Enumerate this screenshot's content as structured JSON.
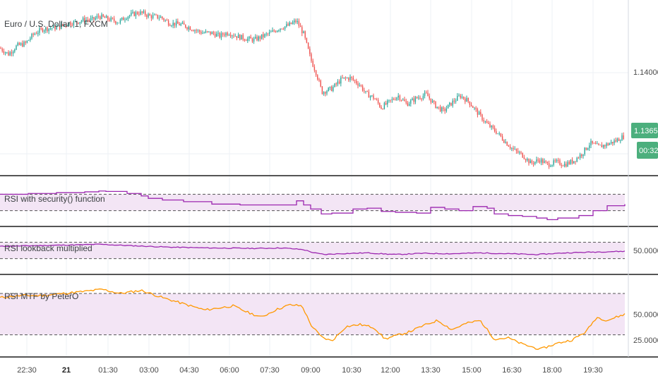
{
  "colors": {
    "candle_up": "#26a69a",
    "candle_down": "#ef5350",
    "rsi_security": "#9c27b0",
    "rsi_lookback": "#9c27b0",
    "rsi_mtf": "#ff9800",
    "band_fill": "#f3e5f5",
    "badge_green": "#4caf7d",
    "separator": "#555555",
    "grid": "#edf0f5"
  },
  "x_axis": {
    "labels": [
      "22:30",
      "21",
      "01:30",
      "03:00",
      "04:30",
      "06:00",
      "07:30",
      "09:00",
      "10:30",
      "12:00",
      "13:30",
      "15:00",
      "16:30",
      "18:00",
      "19:30"
    ],
    "bold_labels": [
      "21"
    ]
  },
  "panes": [
    {
      "id": "price",
      "title": "Euro / U.S. Dollar, 1, FXCM"
    },
    {
      "id": "rsi-security",
      "title": "RSI with security() function"
    },
    {
      "id": "rsi-lookback",
      "title": "RSI lookback multiplied"
    },
    {
      "id": "rsi-mtf",
      "title": "RSI MTF by PeterO"
    }
  ],
  "chart_data": [
    {
      "type": "candlestick",
      "title": "Euro / U.S. Dollar, 1, FXCM",
      "y_ticks": [
        1.14
      ],
      "y_tick_labels": [
        "1.14000"
      ],
      "last_price": "1.13650",
      "countdown": "00:32",
      "ylim": [
        1.1318,
        1.1457
      ],
      "x": [
        0,
        12,
        24,
        36,
        48,
        60,
        72,
        84,
        96,
        108,
        120,
        132,
        140,
        150,
        168,
        180,
        196,
        204,
        212,
        228,
        240,
        256,
        270,
        286,
        296,
        304,
        312,
        316,
        324,
        336,
        348,
        360,
        372,
        384,
        396,
        408,
        420,
        430,
        440,
        448,
        456,
        470,
        484,
        496,
        510,
        518,
        530,
        540,
        552,
        564,
        576,
        590,
        604,
        616,
        628,
        640,
        652,
        664,
        676,
        690,
        704,
        716,
        728,
        740,
        752,
        764,
        776,
        788,
        800,
        812,
        824,
        836,
        848,
        860,
        872,
        884
      ],
      "close": [
        1.142,
        1.1415,
        1.1422,
        1.1424,
        1.1432,
        1.1436,
        1.1437,
        1.1438,
        1.1441,
        1.1442,
        1.1444,
        1.1444,
        1.1447,
        1.1445,
        1.1442,
        1.1447,
        1.145,
        1.1449,
        1.1447,
        1.1446,
        1.1441,
        1.144,
        1.1437,
        1.1433,
        1.1433,
        1.1432,
        1.143,
        1.1432,
        1.1433,
        1.143,
        1.1428,
        1.1427,
        1.143,
        1.1433,
        1.1437,
        1.1439,
        1.1443,
        1.1432,
        1.1411,
        1.1399,
        1.1383,
        1.1386,
        1.1394,
        1.1395,
        1.1389,
        1.1382,
        1.1378,
        1.137,
        1.1375,
        1.138,
        1.1373,
        1.1378,
        1.1381,
        1.1372,
        1.1367,
        1.1374,
        1.138,
        1.1375,
        1.1366,
        1.1356,
        1.1349,
        1.1341,
        1.1334,
        1.133,
        1.1323,
        1.1326,
        1.1322,
        1.1324,
        1.1322,
        1.1325,
        1.1331,
        1.134,
        1.1337,
        1.1339,
        1.1342,
        1.1346
      ]
    },
    {
      "type": "line",
      "title": "RSI with security() function",
      "ylim": [
        0,
        100
      ],
      "bands": [
        70,
        30
      ],
      "x": [
        0,
        40,
        80,
        120,
        140,
        150,
        180,
        200,
        210,
        230,
        260,
        300,
        340,
        380,
        420,
        430,
        440,
        455,
        470,
        500,
        520,
        540,
        560,
        590,
        610,
        630,
        650,
        670,
        690,
        700,
        720,
        740,
        760,
        775,
        790,
        820,
        840,
        860,
        885
      ],
      "y": [
        70,
        72,
        74,
        76,
        78,
        77,
        72,
        66,
        60,
        56,
        52,
        46,
        44,
        44,
        54,
        44,
        34,
        22,
        24,
        34,
        36,
        28,
        26,
        24,
        38,
        34,
        30,
        40,
        36,
        22,
        18,
        16,
        12,
        8,
        12,
        18,
        30,
        42,
        46
      ]
    },
    {
      "type": "line",
      "title": "RSI lookback multiplied",
      "y_ticks": [
        50
      ],
      "y_tick_labels": [
        "50.0000"
      ],
      "ylim": [
        0,
        100
      ],
      "bands": [
        70,
        30
      ],
      "x": [
        0,
        60,
        120,
        140,
        180,
        240,
        300,
        360,
        400,
        430,
        445,
        460,
        480,
        520,
        560,
        600,
        640,
        680,
        720,
        760,
        800,
        840,
        885
      ],
      "y": [
        60,
        62,
        64,
        65,
        62,
        58,
        56,
        55,
        56,
        52,
        44,
        40,
        42,
        44,
        40,
        43,
        42,
        44,
        42,
        40,
        44,
        46,
        48
      ]
    },
    {
      "type": "line",
      "title": "RSI MTF by PeterO",
      "y_ticks": [
        50,
        25
      ],
      "y_tick_labels": [
        "50.0000",
        "25.0000"
      ],
      "ylim": [
        10,
        85
      ],
      "bands": [
        70,
        30
      ],
      "x": [
        0,
        30,
        60,
        90,
        120,
        145,
        170,
        200,
        230,
        260,
        290,
        310,
        330,
        350,
        370,
        390,
        410,
        428,
        440,
        455,
        470,
        490,
        510,
        530,
        545,
        560,
        580,
        600,
        620,
        640,
        660,
        680,
        700,
        720,
        740,
        765,
        790,
        810,
        830,
        845,
        860,
        885
      ],
      "y": [
        66,
        68,
        68,
        70,
        72,
        74,
        70,
        73,
        66,
        60,
        54,
        56,
        58,
        52,
        47,
        54,
        59,
        58,
        40,
        28,
        24,
        38,
        40,
        37,
        26,
        29,
        33,
        39,
        44,
        35,
        41,
        44,
        26,
        27,
        21,
        16,
        22,
        25,
        33,
        47,
        44,
        50
      ]
    }
  ]
}
